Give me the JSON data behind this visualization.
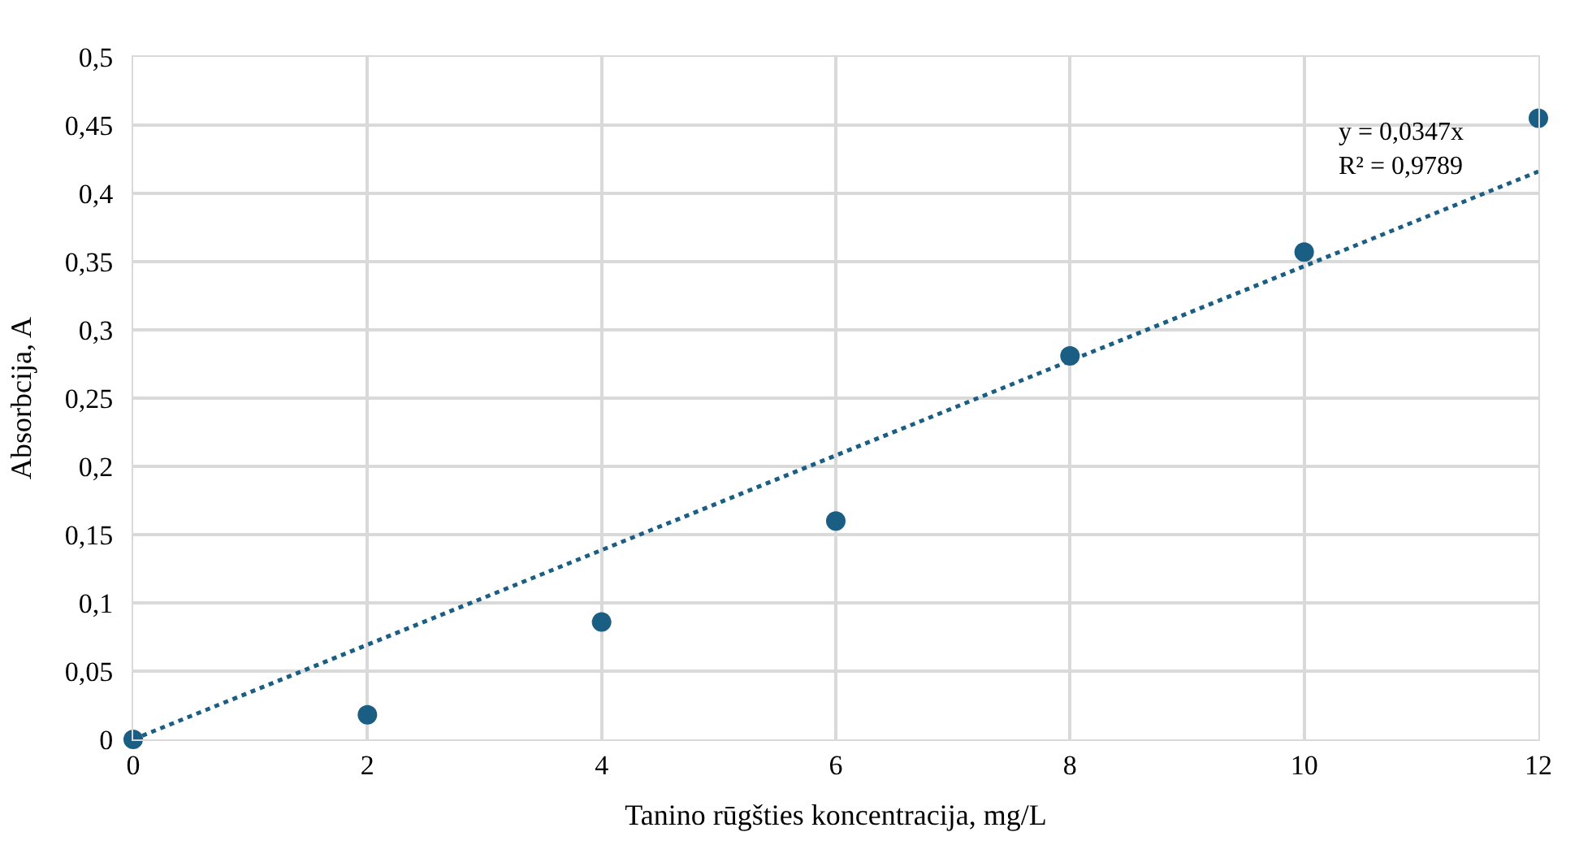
{
  "chart_data": {
    "type": "scatter",
    "xlabel": "Tanino rūgšties koncentracija, mg/L",
    "ylabel": "Absorbcija, A",
    "x": [
      0,
      2,
      4,
      6,
      8,
      10,
      12
    ],
    "series": [
      {
        "color": "#1b5e84",
        "marker": "circle",
        "values": [
          0,
          0.018,
          0.086,
          0.16,
          0.281,
          0.357,
          0.455
        ]
      },
      {
        "type": "line",
        "color": "#1b5e84",
        "line_style": "dotted",
        "marker": "none",
        "x": [
          0,
          12
        ],
        "values": [
          0,
          0.416
        ]
      }
    ],
    "annotations": [
      "y = 0,0347x",
      "R² = 0,9789"
    ],
    "xlim": [
      0,
      12
    ],
    "xticks": [
      0,
      2,
      4,
      6,
      8,
      10,
      12
    ],
    "ylim": [
      0,
      0.5
    ],
    "yticks": [
      0,
      {
        "value": 0.05,
        "label": "0,05"
      },
      {
        "value": 0.1,
        "label": "0,1"
      },
      {
        "value": 0.15,
        "label": "0,15"
      },
      {
        "value": 0.2,
        "label": "0,2"
      },
      {
        "value": 0.25,
        "label": "0,25"
      },
      {
        "value": 0.3,
        "label": "0,3"
      },
      {
        "value": 0.35,
        "label": "0,35"
      },
      {
        "value": 0.4,
        "label": "0,4"
      },
      {
        "value": 0.45,
        "label": "0,45"
      },
      {
        "value": 0.5,
        "label": "0,5"
      }
    ],
    "grid": true
  }
}
